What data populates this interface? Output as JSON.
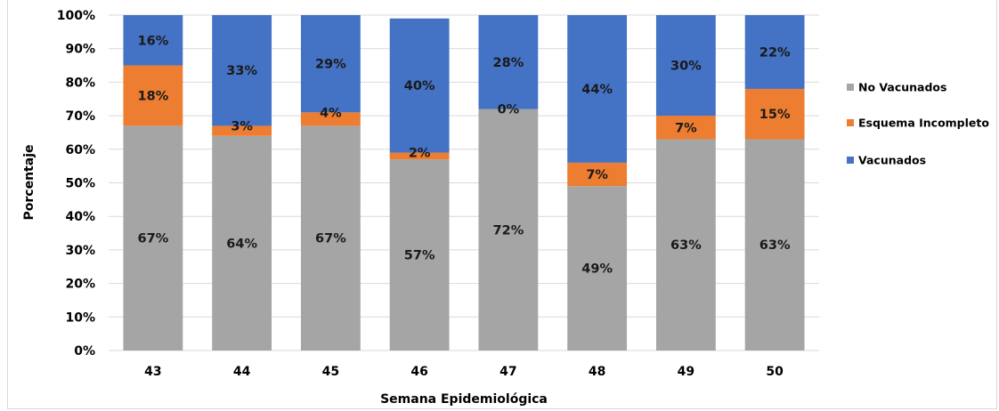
{
  "chart_data": {
    "type": "bar",
    "stacked": true,
    "title": "",
    "xlabel": "Semana Epidemiológica",
    "ylabel": "Porcentaje",
    "categories": [
      "43",
      "44",
      "45",
      "46",
      "47",
      "48",
      "49",
      "50"
    ],
    "ylim": [
      0,
      100
    ],
    "yticks": [
      "0%",
      "10%",
      "20%",
      "30%",
      "40%",
      "50%",
      "60%",
      "70%",
      "80%",
      "90%",
      "100%"
    ],
    "grid": true,
    "legend": "right",
    "series": [
      {
        "name": "No Vacunados",
        "color": "#a5a5a5",
        "values": [
          67,
          64,
          67,
          57,
          72,
          49,
          63,
          63
        ],
        "labels": [
          "67%",
          "64%",
          "67%",
          "57%",
          "72%",
          "49%",
          "63%",
          "63%"
        ]
      },
      {
        "name": "Esquema Incompleto",
        "color": "#ed7d31",
        "values": [
          18,
          3,
          4,
          2,
          0,
          7,
          7,
          15
        ],
        "labels": [
          "18%",
          "3%",
          "4%",
          "2%",
          "0%",
          "7%",
          "7%",
          "15%"
        ]
      },
      {
        "name": "Vacunados",
        "color": "#4472c4",
        "values": [
          16,
          33,
          29,
          40,
          28,
          44,
          30,
          22
        ],
        "labels": [
          "16%",
          "33%",
          "29%",
          "40%",
          "28%",
          "44%",
          "30%",
          "22%"
        ]
      }
    ],
    "legend_order": [
      0,
      1,
      2
    ]
  }
}
